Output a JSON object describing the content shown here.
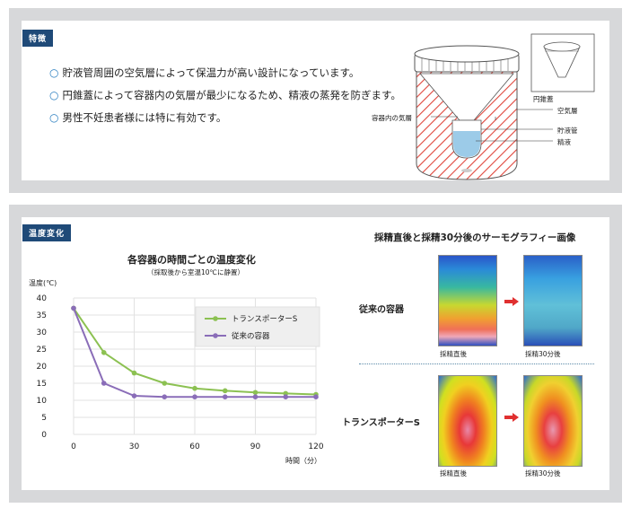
{
  "features": {
    "badge": "特徴",
    "items": [
      "貯液管周囲の空気層によって保温力が高い設計になっています。",
      "円錐蓋によって容器内の気層が最少になるため、精液の蒸発を防ぎます。",
      "男性不妊患者様には特に有効です。"
    ],
    "bullet": "○",
    "diagram_labels": {
      "cone_lid": "円錐蓋",
      "air_layer": "空気層",
      "container_air": "容器内の気層",
      "storage_tube": "貯液管",
      "semen": "精液"
    }
  },
  "temperature": {
    "badge": "温度変化",
    "chart_title": "各容器の時間ごとの温度変化",
    "chart_subtitle": "（採取後から室温10℃に静置）",
    "thermo_title": "採精直後と採精30分後のサーモグラフィー画像",
    "row_conventional": "従来の容器",
    "row_transporter": "トランスポーターS",
    "caption_immediate": "採精直後",
    "caption_30min": "採精30分後"
  },
  "chart_data": {
    "type": "line",
    "title": "各容器の時間ごとの温度変化",
    "subtitle": "（採取後から室温10℃に静置）",
    "xlabel": "時間（分）",
    "ylabel": "温度(℃)",
    "xlim": [
      0,
      120
    ],
    "ylim": [
      0,
      40
    ],
    "xticks": [
      0,
      30,
      60,
      90,
      120
    ],
    "yticks": [
      0,
      5,
      10,
      15,
      20,
      25,
      30,
      35,
      40
    ],
    "grid": true,
    "legend_position": "top-right",
    "series": [
      {
        "name": "トランスポーターS",
        "color": "#8cc152",
        "x": [
          0,
          15,
          30,
          45,
          60,
          75,
          90,
          105,
          120
        ],
        "y": [
          37,
          24,
          18,
          15,
          13.5,
          12.8,
          12.3,
          12,
          11.7
        ]
      },
      {
        "name": "従来の容器",
        "color": "#8a6db8",
        "x": [
          0,
          15,
          30,
          45,
          60,
          75,
          90,
          105,
          120
        ],
        "y": [
          37,
          15,
          11.3,
          11,
          11,
          11,
          11,
          11,
          11
        ]
      }
    ]
  }
}
